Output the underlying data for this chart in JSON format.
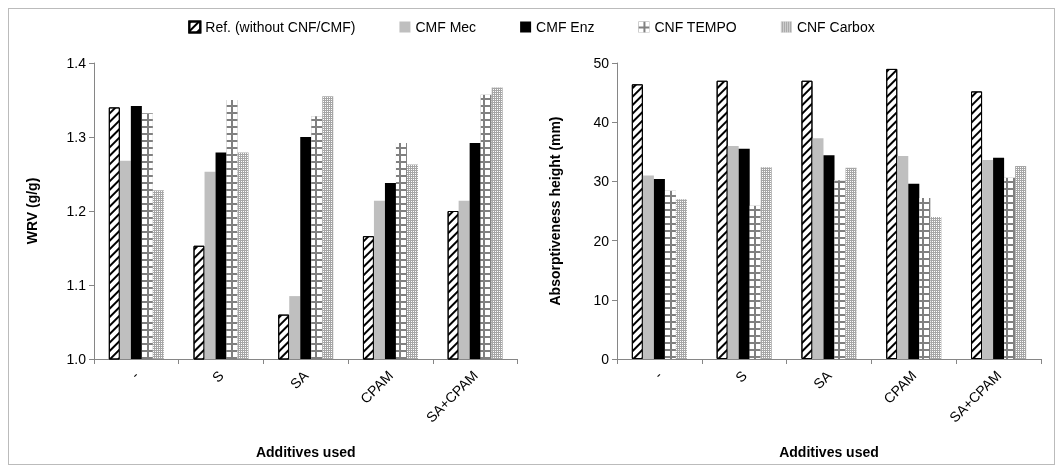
{
  "chart_data": [
    {
      "type": "bar",
      "xlabel": "Additives used",
      "ylabel": "WRV (g/g)",
      "categories": [
        "-",
        "S",
        "SA",
        "CPAM",
        "SA+CPAM"
      ],
      "ylim": [
        1.0,
        1.4
      ],
      "yticks": [
        {
          "value": 1.0,
          "label": "1.0"
        },
        1.1,
        1.2,
        1.3,
        1.4
      ],
      "grid": false,
      "legend": "top",
      "series": [
        {
          "name": "Ref. (without CNF/CMF)",
          "color": "#ffffff",
          "values": [
            1.34,
            1.153,
            1.06,
            1.166,
            1.2
          ]
        },
        {
          "name": "CMF Mec",
          "color": "#bfbfbf",
          "values": [
            1.268,
            1.253,
            1.085,
            1.214,
            1.214
          ]
        },
        {
          "name": "CMF Enz",
          "color": "#000000",
          "values": [
            1.342,
            1.279,
            1.3,
            1.238,
            1.292
          ]
        },
        {
          "name": "CNF TEMPO",
          "color": "#808080",
          "values": [
            1.332,
            1.35,
            1.328,
            1.292,
            1.357
          ]
        },
        {
          "name": "CNF Carbox",
          "color": "#a6a6a6",
          "values": [
            1.228,
            1.279,
            1.355,
            1.263,
            1.367
          ]
        }
      ]
    },
    {
      "type": "bar",
      "xlabel": "Additives used",
      "ylabel": "Absorptiveness height (mm)",
      "categories": [
        "-",
        "S",
        "SA",
        "CPAM",
        "SA+CPAM"
      ],
      "ylim": [
        0,
        50
      ],
      "yticks": [
        0,
        10,
        20,
        30,
        40,
        50
      ],
      "grid": false,
      "legend": false,
      "series": [
        {
          "name": "Ref. (without CNF/CMF)",
          "color": "#ffffff",
          "values": [
            46.4,
            47.0,
            47.0,
            49.0,
            45.2
          ]
        },
        {
          "name": "CMF Mec",
          "color": "#bfbfbf",
          "values": [
            31.0,
            36.0,
            37.3,
            34.3,
            33.6
          ]
        },
        {
          "name": "CMF Enz",
          "color": "#000000",
          "values": [
            30.4,
            35.5,
            34.4,
            29.6,
            34.0
          ]
        },
        {
          "name": "CNF TEMPO",
          "color": "#808080",
          "values": [
            28.4,
            25.9,
            30.2,
            27.2,
            30.6
          ]
        },
        {
          "name": "CNF Carbox",
          "color": "#a6a6a6",
          "values": [
            27.0,
            32.4,
            32.3,
            24.0,
            32.6
          ]
        }
      ]
    }
  ]
}
